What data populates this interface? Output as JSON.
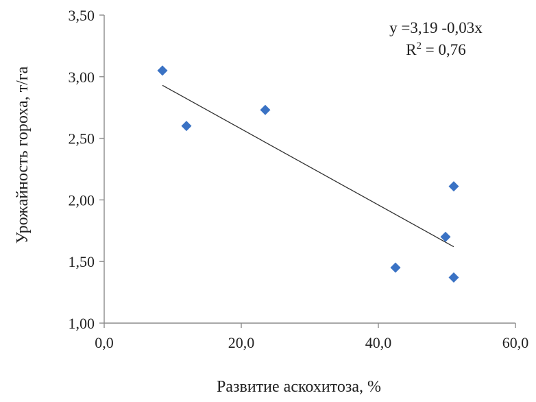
{
  "chart_data": {
    "type": "scatter",
    "xlabel": "Развитие аскохитоза, %",
    "ylabel": "Урожайность гороха, т/га",
    "xlim": [
      0,
      60
    ],
    "ylim": [
      1.0,
      3.5
    ],
    "x_ticks": [
      "0,0",
      "20,0",
      "40,0",
      "60,0"
    ],
    "x_tick_values": [
      0,
      20,
      40,
      60
    ],
    "y_ticks": [
      "1,00",
      "1,50",
      "2,00",
      "2,50",
      "3,00",
      "3,50"
    ],
    "y_tick_values": [
      1.0,
      1.5,
      2.0,
      2.5,
      3.0,
      3.5
    ],
    "grid": false,
    "series": [
      {
        "points": [
          {
            "x": 8.5,
            "y": 3.05
          },
          {
            "x": 12.0,
            "y": 2.6
          },
          {
            "x": 23.5,
            "y": 2.73
          },
          {
            "x": 42.5,
            "y": 1.45
          },
          {
            "x": 49.8,
            "y": 1.7
          },
          {
            "x": 51.0,
            "y": 2.11
          },
          {
            "x": 51.0,
            "y": 1.37
          }
        ],
        "marker": "diamond",
        "color": "#3a72c4"
      }
    ],
    "trendline": {
      "type": "linear",
      "from": {
        "x": 8.5,
        "y": 2.93
      },
      "to": {
        "x": 51.0,
        "y": 1.62
      },
      "color": "#333333"
    },
    "annotation": {
      "equation_text": "y =3,19 -0,03x",
      "r2_prefix": "R",
      "r2_sup": "2",
      "r2_suffix": " = 0,76"
    }
  }
}
